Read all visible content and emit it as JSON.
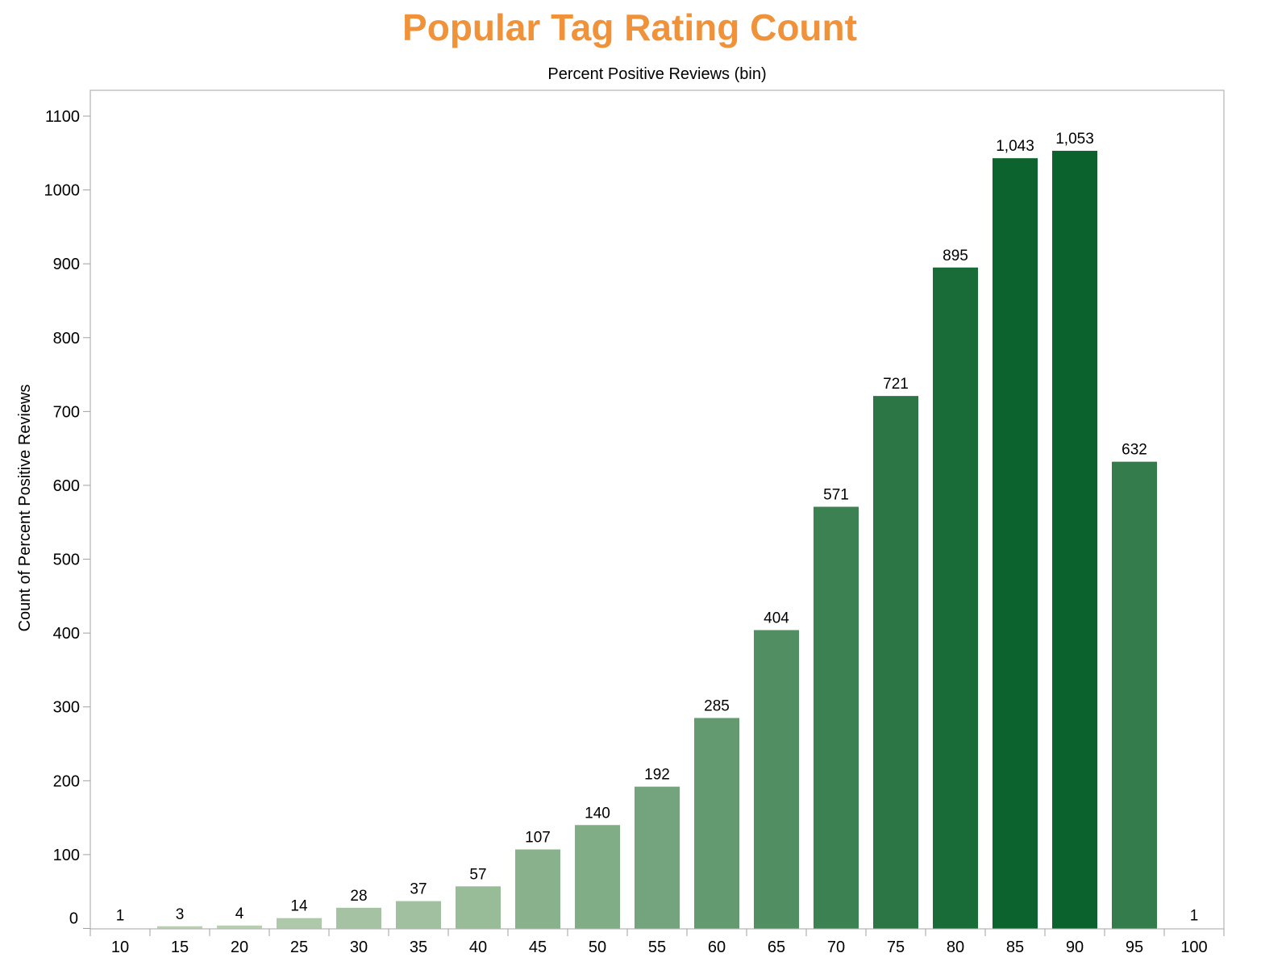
{
  "chart_data": {
    "type": "bar",
    "title": "Popular Tag Rating Count",
    "xlabel": "Percent Positive Reviews (bin)",
    "ylabel": "Count of Percent Positive Reviews",
    "categories": [
      "10",
      "15",
      "20",
      "25",
      "30",
      "35",
      "40",
      "45",
      "50",
      "55",
      "60",
      "65",
      "70",
      "75",
      "80",
      "85",
      "90",
      "95",
      "100"
    ],
    "values": [
      1,
      3,
      4,
      14,
      28,
      37,
      57,
      107,
      140,
      192,
      285,
      404,
      571,
      721,
      895,
      1043,
      1053,
      632,
      1
    ],
    "value_labels": [
      "1",
      "3",
      "4",
      "14",
      "28",
      "37",
      "57",
      "107",
      "140",
      "192",
      "285",
      "404",
      "571",
      "721",
      "895",
      "1,043",
      "1,053",
      "632",
      "1"
    ],
    "ylim": [
      0,
      1100
    ],
    "yticks": [
      0,
      100,
      200,
      300,
      400,
      500,
      600,
      700,
      800,
      900,
      1000,
      1100
    ],
    "xlabel_position": "top",
    "grid": false,
    "legend": "none",
    "colors": {
      "title": "#F0923A",
      "bar_low": "#C3D6B9",
      "bar_high": "#0B622C",
      "axis": "#A0A0A0"
    }
  }
}
